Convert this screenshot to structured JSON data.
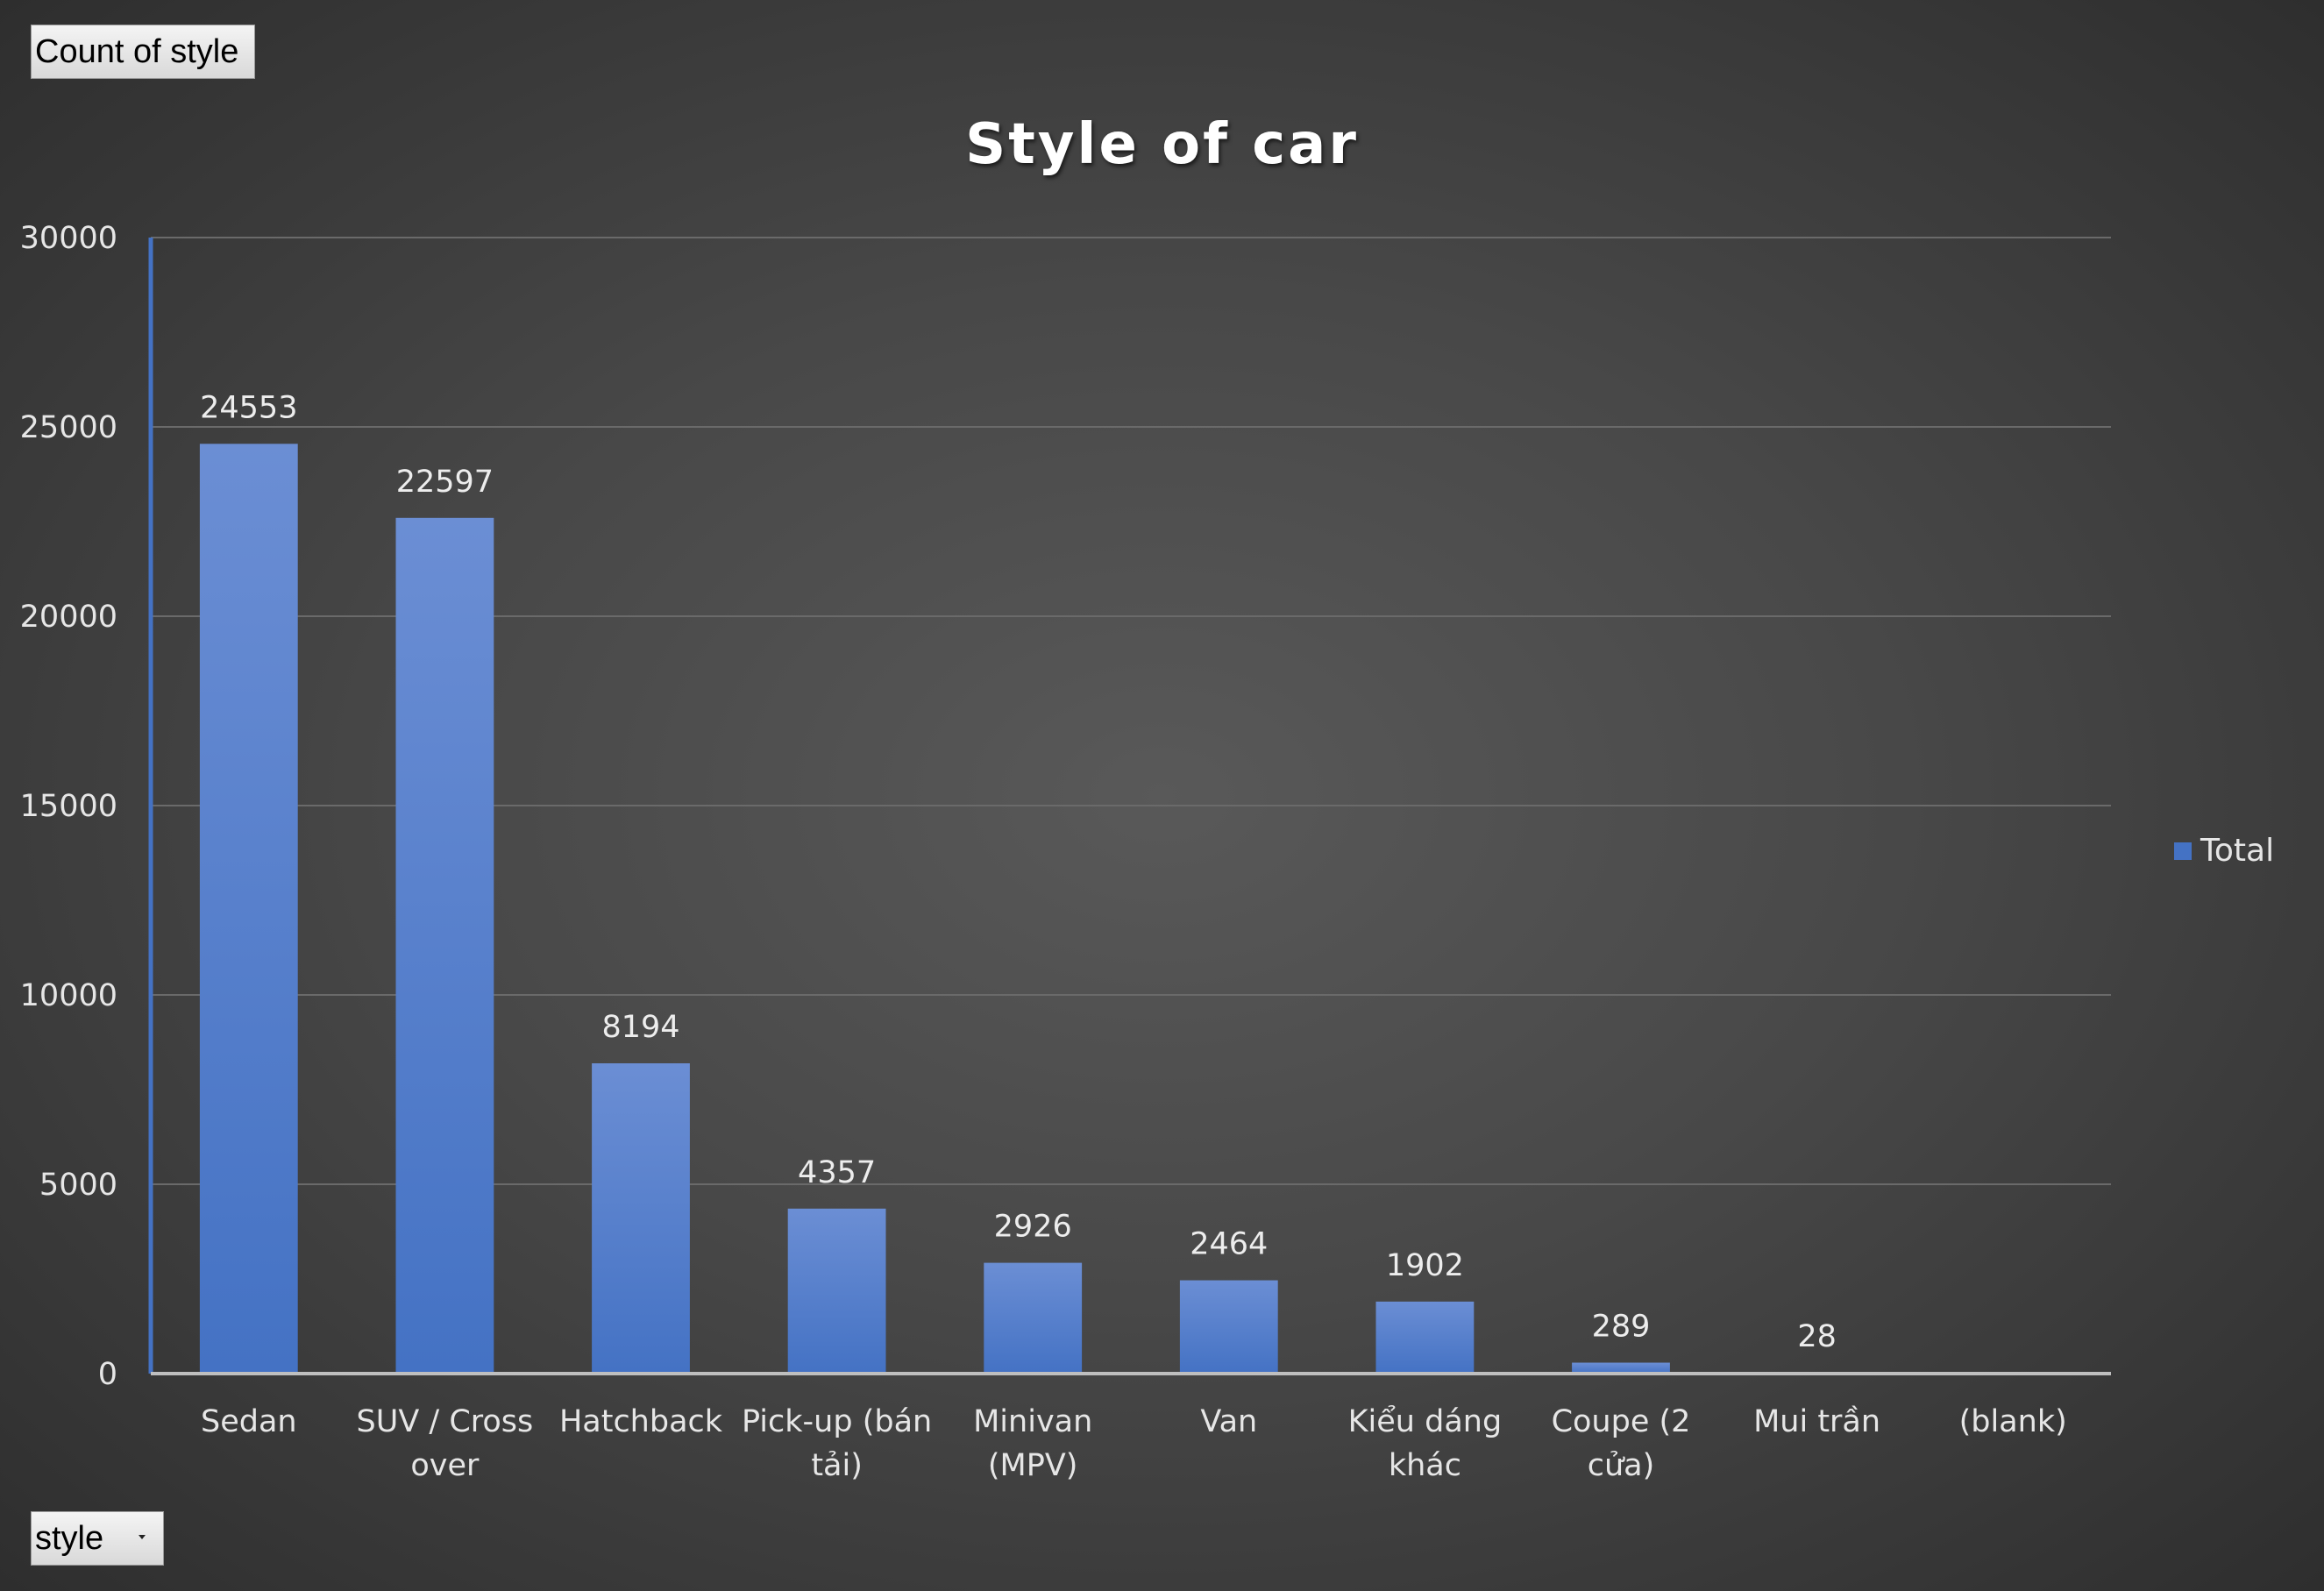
{
  "pivot": {
    "value_field": "Count of style",
    "axis_field": "style"
  },
  "colors": {
    "bar": "#4472c4",
    "bar_light": "#6b8ed4",
    "gridline": "#6a6a6a",
    "axis": "#4472c4"
  },
  "chart_data": {
    "type": "bar",
    "title": "Style of car",
    "xlabel": "",
    "ylabel": "",
    "ylim": [
      0,
      30000
    ],
    "yticks": [
      0,
      5000,
      10000,
      15000,
      20000,
      25000,
      30000
    ],
    "grid": true,
    "legend_position": "right",
    "categories": [
      [
        "Sedan"
      ],
      [
        "SUV / Cross",
        "over"
      ],
      [
        "Hatchback"
      ],
      [
        "Pick-up (bán",
        "tải)"
      ],
      [
        "Minivan",
        "(MPV)"
      ],
      [
        "Van"
      ],
      [
        "Kiểu dáng",
        "khác"
      ],
      [
        "Coupe (2",
        "cửa)"
      ],
      [
        "Mui trần"
      ],
      [
        "(blank)"
      ]
    ],
    "series": [
      {
        "name": "Total",
        "values": [
          24553,
          22597,
          8194,
          4357,
          2926,
          2464,
          1902,
          289,
          28,
          null
        ]
      }
    ]
  }
}
